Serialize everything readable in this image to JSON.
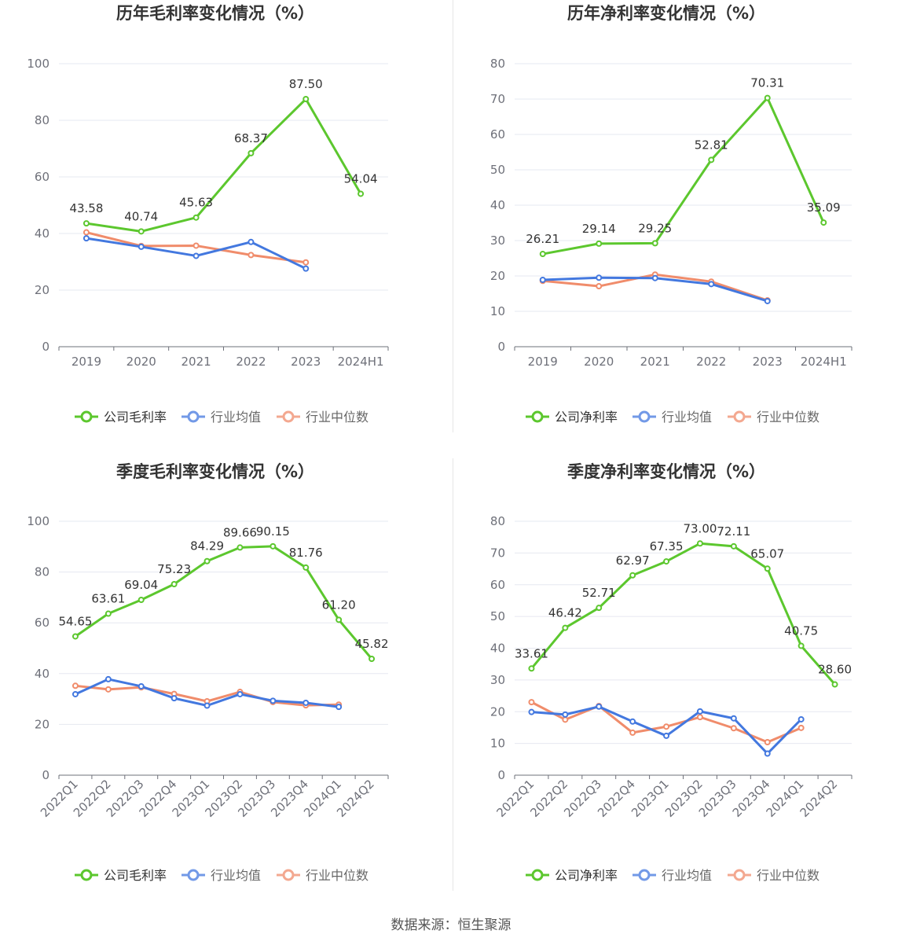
{
  "legend_colors": {
    "company": "#5cc72e",
    "industry_avg": "#4378df",
    "industry_median": "#f08c6b"
  },
  "source": "数据来源：恒生聚源",
  "chart_data": [
    {
      "type": "line",
      "title": "历年毛利率变化情况（%）",
      "categories": [
        "2019",
        "2020",
        "2021",
        "2022",
        "2023",
        "2024H1"
      ],
      "ylim": [
        0,
        100
      ],
      "yticks": [
        0,
        20,
        40,
        60,
        80,
        100
      ],
      "grid": true,
      "legend_position": "bottom",
      "series": [
        {
          "name": "公司毛利率",
          "values": [
            43.58,
            40.74,
            45.63,
            68.37,
            87.5,
            54.04
          ],
          "labels": [
            "43.58",
            "40.74",
            "45.63",
            "68.37",
            "87.50",
            "54.04"
          ]
        },
        {
          "name": "行业均值",
          "values": [
            38.3,
            35.3,
            32.1,
            37.0,
            27.6,
            null
          ]
        },
        {
          "name": "行业中位数",
          "values": [
            40.4,
            35.6,
            35.7,
            32.4,
            29.8,
            null
          ]
        }
      ]
    },
    {
      "type": "line",
      "title": "历年净利率变化情况（%）",
      "categories": [
        "2019",
        "2020",
        "2021",
        "2022",
        "2023",
        "2024H1"
      ],
      "ylim": [
        0,
        80
      ],
      "yticks": [
        0,
        10,
        20,
        30,
        40,
        50,
        60,
        70,
        80
      ],
      "grid": true,
      "legend_position": "bottom",
      "series": [
        {
          "name": "公司净利率",
          "values": [
            26.21,
            29.14,
            29.25,
            52.81,
            70.31,
            35.09
          ],
          "labels": [
            "26.21",
            "29.14",
            "29.25",
            "52.81",
            "70.31",
            "35.09"
          ]
        },
        {
          "name": "行业均值",
          "values": [
            18.9,
            19.5,
            19.4,
            17.7,
            12.9,
            null
          ]
        },
        {
          "name": "行业中位数",
          "values": [
            18.6,
            17.1,
            20.4,
            18.4,
            13.1,
            null
          ]
        }
      ]
    },
    {
      "type": "line",
      "title": "季度毛利率变化情况（%）",
      "categories": [
        "2022Q1",
        "2022Q2",
        "2022Q3",
        "2022Q4",
        "2023Q1",
        "2023Q2",
        "2023Q3",
        "2023Q4",
        "2024Q1",
        "2024Q2"
      ],
      "ylim": [
        0,
        100
      ],
      "yticks": [
        0,
        20,
        40,
        60,
        80,
        100
      ],
      "grid": true,
      "legend_position": "bottom",
      "series": [
        {
          "name": "公司毛利率",
          "values": [
            54.65,
            63.61,
            69.04,
            75.23,
            84.29,
            89.66,
            90.15,
            81.76,
            61.2,
            45.82
          ],
          "labels": [
            "54.65",
            "63.61",
            "69.04",
            "75.23",
            "84.29",
            "89.66",
            "90.15",
            "81.76",
            "61.20",
            "45.82"
          ]
        },
        {
          "name": "行业均值",
          "values": [
            31.9,
            37.8,
            35.0,
            30.3,
            27.4,
            31.9,
            29.3,
            28.5,
            26.9,
            null
          ]
        },
        {
          "name": "行业中位数",
          "values": [
            35.2,
            33.8,
            34.6,
            32.0,
            29.1,
            32.8,
            28.8,
            27.5,
            27.8,
            null
          ]
        }
      ]
    },
    {
      "type": "line",
      "title": "季度净利率变化情况（%）",
      "categories": [
        "2022Q1",
        "2022Q2",
        "2022Q3",
        "2022Q4",
        "2023Q1",
        "2023Q2",
        "2023Q3",
        "2023Q4",
        "2024Q1",
        "2024Q2"
      ],
      "ylim": [
        0,
        80
      ],
      "yticks": [
        0,
        10,
        20,
        30,
        40,
        50,
        60,
        70,
        80
      ],
      "grid": true,
      "legend_position": "bottom",
      "series": [
        {
          "name": "公司净利率",
          "values": [
            33.61,
            46.42,
            52.71,
            62.97,
            67.35,
            73.0,
            72.11,
            65.07,
            40.75,
            28.6
          ],
          "labels": [
            "33.61",
            "46.42",
            "52.71",
            "62.97",
            "67.35",
            "73.00",
            "72.11",
            "65.07",
            "40.75",
            "28.60"
          ]
        },
        {
          "name": "行业均值",
          "values": [
            19.9,
            19.1,
            21.6,
            16.9,
            12.4,
            20.1,
            17.9,
            6.8,
            17.6,
            null
          ]
        },
        {
          "name": "行业中位数",
          "values": [
            23.0,
            17.5,
            21.8,
            13.4,
            15.3,
            18.3,
            14.8,
            10.4,
            14.9,
            null
          ]
        }
      ]
    }
  ]
}
